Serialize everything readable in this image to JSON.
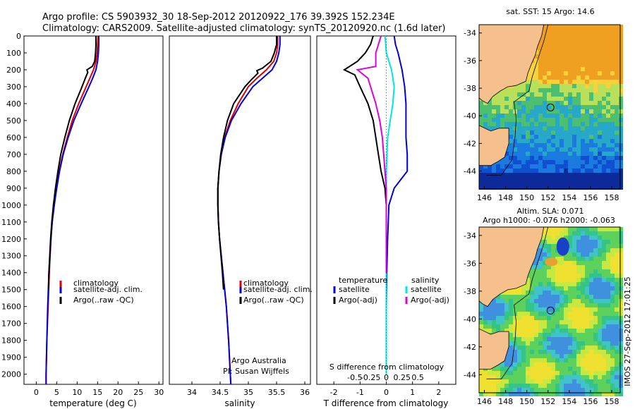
{
  "header": {
    "line1": "Argo profile: CS 5903932_30 18-Sep-2012 20120922_176 39.392S 152.234E",
    "line2": "Climatology: CARS2009. Satellite-adjusted climatology: synTS_20120920.nc (1.6d later)"
  },
  "colors": {
    "climatology": "#e00000",
    "satellite": "#0000dd",
    "argo": "#000000",
    "sal_sat": "#00e5e5",
    "sal_argo": "#dd00dd",
    "land": "#f6c08c"
  },
  "temp_panel": {
    "xlabel": "temperature (deg C)",
    "xticks": [
      0,
      5,
      10,
      15,
      20,
      25,
      30
    ],
    "xlim": [
      -3,
      31
    ],
    "legend": [
      "climatology",
      "satellite-adj. clim.",
      "Argo(..raw -QC)"
    ]
  },
  "sal_panel": {
    "xlabel": "salinity",
    "xticks": [
      34,
      34.5,
      35,
      35.5,
      36
    ],
    "xlim": [
      33.6,
      36.1
    ],
    "legend": [
      "climatology",
      "satellite-adj. clim.",
      "Argo(..raw -QC)"
    ],
    "note1": "Argo Australia",
    "note2": "PI: Susan Wijffels"
  },
  "diff_panel": {
    "xlabel": "T difference from climatology",
    "top_label": "S difference from climatology",
    "xticks_T": [
      -2,
      -1,
      0,
      1,
      2
    ],
    "xticks_S_labels": [
      "-0.5",
      "-0.25",
      "0",
      "0.25",
      "0.5"
    ],
    "xlim": [
      -2.65,
      2.65
    ],
    "legend_temp_title": "temperature",
    "legend_sal_title": "salinity",
    "legend_temp": [
      "satellite",
      "Argo(-adj)"
    ],
    "legend_sal": [
      "satellite",
      "Argo(-adj)"
    ]
  },
  "depth_axis": {
    "ticks": [
      0,
      100,
      200,
      300,
      400,
      500,
      600,
      700,
      800,
      900,
      1000,
      1100,
      1200,
      1300,
      1400,
      1500,
      1600,
      1700,
      1800,
      1900,
      2000
    ],
    "ylim": [
      0,
      2060
    ]
  },
  "map_sst": {
    "title": "sat. SST: 15 Argo: 14.6",
    "lon_ticks": [
      146,
      148,
      150,
      152,
      154,
      156,
      158
    ],
    "lat_ticks": [
      -34,
      -36,
      -38,
      -40,
      -42,
      -44
    ],
    "lon_range": [
      145.5,
      158.8
    ],
    "lat_range": [
      -45.3,
      -33.4
    ],
    "float_lon": 152.234,
    "float_lat": -39.392
  },
  "map_sla": {
    "title1": "Altim. SLA: 0.071",
    "title2": "Argo h1000: -0.076 h2000: -0.063",
    "lon_ticks": [
      146,
      148,
      150,
      152,
      154,
      156,
      158
    ],
    "lat_ticks": [
      -34,
      -36,
      -38,
      -40,
      -42,
      -44
    ],
    "lon_range": [
      145.5,
      158.8
    ],
    "lat_range": [
      -45.3,
      -33.4
    ],
    "float_lon": 152.234,
    "float_lat": -39.392
  },
  "side_text": "IMOS 27-Sep-2012 17:01:25",
  "chart_data": [
    {
      "type": "line",
      "xlabel": "temperature (deg C)",
      "ylim": [
        0,
        2060
      ],
      "xlim": [
        -3,
        31
      ],
      "series": [
        {
          "name": "climatology",
          "depth": [
            0,
            50,
            100,
            150,
            200,
            250,
            300,
            400,
            500,
            600,
            700,
            800,
            900,
            1000,
            1100,
            1200,
            1400,
            1600,
            1800,
            2000,
            2060
          ],
          "values": [
            15.1,
            15.0,
            14.9,
            14.6,
            14.0,
            13.1,
            12.2,
            10.4,
            8.8,
            7.6,
            6.5,
            5.6,
            4.9,
            4.4,
            3.9,
            3.6,
            3.2,
            2.9,
            2.6,
            2.4,
            2.4
          ]
        },
        {
          "name": "satellite-adj. clim.",
          "depth": [
            0,
            50,
            100,
            150,
            200,
            250,
            300,
            400,
            500,
            600,
            700,
            800,
            900,
            1000,
            1100,
            1200,
            1400,
            1600,
            1800,
            2000,
            2060
          ],
          "values": [
            15.3,
            15.3,
            15.2,
            15.0,
            14.6,
            13.8,
            12.9,
            11.0,
            9.2,
            7.8,
            6.6,
            5.7,
            5.0,
            4.4,
            3.9,
            3.6,
            3.1,
            2.8,
            2.6,
            2.4,
            2.4
          ]
        },
        {
          "name": "Argo(..raw -QC)",
          "depth": [
            0,
            50,
            100,
            150,
            180,
            200,
            215,
            250,
            300,
            400,
            500,
            600,
            700,
            800,
            900,
            1000,
            1100,
            1200,
            1400,
            1500
          ],
          "values": [
            14.6,
            14.6,
            14.5,
            14.3,
            13.7,
            12.4,
            12.6,
            12.0,
            11.2,
            9.5,
            8.1,
            7.0,
            6.0,
            5.3,
            4.7,
            4.2,
            3.8,
            3.5,
            3.1,
            3.0
          ]
        }
      ]
    },
    {
      "type": "line",
      "xlabel": "salinity",
      "ylim": [
        0,
        2060
      ],
      "xlim": [
        33.6,
        36.1
      ],
      "series": [
        {
          "name": "climatology",
          "depth": [
            0,
            50,
            100,
            150,
            200,
            250,
            300,
            400,
            500,
            600,
            700,
            800,
            900,
            1000,
            1100,
            1200,
            1400,
            1600,
            1800,
            2000,
            2060
          ],
          "values": [
            35.52,
            35.52,
            35.5,
            35.45,
            35.32,
            35.15,
            35.0,
            34.82,
            34.68,
            34.58,
            34.52,
            34.48,
            34.46,
            34.46,
            34.47,
            34.49,
            34.55,
            34.61,
            34.65,
            34.68,
            34.69
          ]
        },
        {
          "name": "satellite-adj. clim.",
          "depth": [
            0,
            50,
            100,
            150,
            200,
            250,
            300,
            400,
            500,
            600,
            700,
            800,
            900,
            1000,
            1100,
            1200,
            1400,
            1600,
            1800,
            2000,
            2060
          ],
          "values": [
            35.56,
            35.56,
            35.54,
            35.5,
            35.42,
            35.25,
            35.08,
            34.87,
            34.7,
            34.59,
            34.52,
            34.48,
            34.46,
            34.46,
            34.47,
            34.49,
            34.55,
            34.61,
            34.65,
            34.68,
            34.69
          ]
        },
        {
          "name": "Argo(..raw -QC)",
          "depth": [
            0,
            50,
            100,
            150,
            190,
            205,
            220,
            260,
            300,
            400,
            500,
            600,
            700,
            800,
            900,
            1000,
            1100,
            1200,
            1400,
            1500
          ],
          "values": [
            35.5,
            35.5,
            35.46,
            35.4,
            35.25,
            35.15,
            35.17,
            35.05,
            34.94,
            34.74,
            34.63,
            34.56,
            34.51,
            34.48,
            34.46,
            34.46,
            34.47,
            34.49,
            34.54,
            34.56
          ]
        }
      ]
    },
    {
      "type": "line",
      "xlabel": "T difference from climatology",
      "ylim": [
        0,
        2060
      ],
      "xlim": [
        -2.65,
        2.65
      ],
      "series": [
        {
          "name": "temperature satellite",
          "depth": [
            0,
            50,
            100,
            200,
            300,
            400,
            500,
            600,
            700,
            800,
            900,
            1000,
            1200,
            1400,
            1600,
            2000
          ],
          "values": [
            0.3,
            0.35,
            0.45,
            0.6,
            0.7,
            0.75,
            0.75,
            0.75,
            0.8,
            0.8,
            0.3,
            0.1,
            0.05,
            0.02,
            0.0,
            0.0
          ]
        },
        {
          "name": "temperature Argo(-adj)",
          "depth": [
            0,
            50,
            100,
            150,
            200,
            230,
            300,
            400,
            500,
            600,
            700,
            800,
            900,
            1000,
            1200,
            1400
          ],
          "values": [
            -0.5,
            -0.6,
            -0.8,
            -1.1,
            -1.6,
            -1.2,
            -1.0,
            -0.7,
            -0.5,
            -0.4,
            -0.3,
            -0.2,
            -0.05,
            0.0,
            0.0,
            0.0
          ]
        },
        {
          "name": "salinity satellite",
          "depth": [
            0,
            50,
            100,
            200,
            300,
            400,
            500,
            600,
            800,
            1000,
            1400,
            2000
          ],
          "values": [
            -0.05,
            -0.02,
            0.0,
            0.2,
            0.3,
            0.25,
            0.15,
            0.05,
            0.0,
            0.0,
            0.0,
            0.0
          ]
        },
        {
          "name": "salinity Argo(-adj)",
          "depth": [
            0,
            100,
            180,
            200,
            250,
            300,
            400,
            500,
            600,
            700,
            800,
            900,
            1000,
            1400
          ],
          "values": [
            -0.2,
            -0.4,
            -0.4,
            -1.1,
            -0.7,
            -0.6,
            -0.4,
            -0.25,
            -0.15,
            -0.1,
            -0.05,
            0.0,
            0.0,
            0.0
          ]
        }
      ]
    }
  ]
}
